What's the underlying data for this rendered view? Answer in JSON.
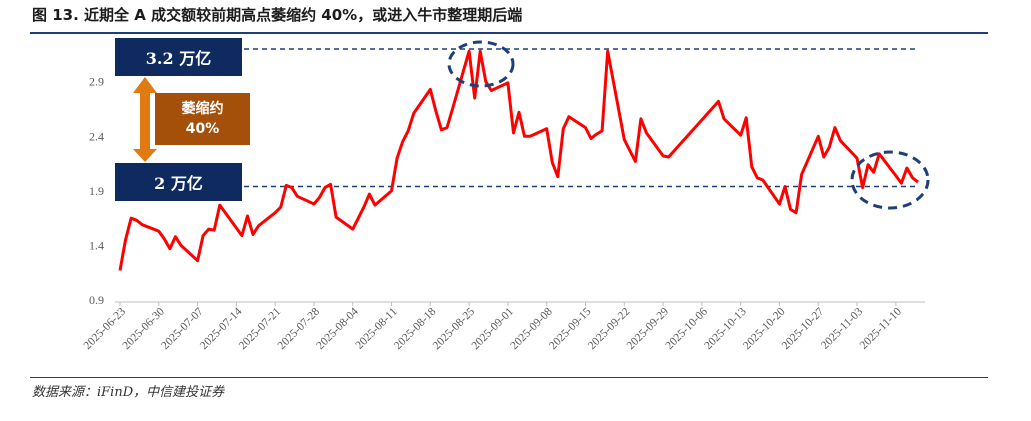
{
  "title": "图 13. 近期全 A 成交额较前期高点萎缩约 40%，或进入牛市整理期后端",
  "source": "数据来源：iFinD，中信建投证券",
  "annotations": {
    "high_label": "3.2 万亿",
    "low_label": "2 万亿",
    "shrink_line1": "萎缩约",
    "shrink_line2": "40%"
  },
  "colors": {
    "line": "#ff0000",
    "accent": "#0f2a5f",
    "shrink_box": "#a44f0a",
    "arrow": "#e07b12"
  },
  "chart_data": {
    "type": "line",
    "title": "",
    "xlabel": "",
    "ylabel": "",
    "ylim": [
      0.9,
      3.2
    ],
    "yticks": [
      0.9,
      1.4,
      1.9,
      2.4,
      2.9
    ],
    "grid": false,
    "reference_lines": [
      3.2,
      1.94
    ],
    "x_tick_labels": [
      "2025-06-23",
      "2025-06-30",
      "2025-07-07",
      "2025-07-14",
      "2025-07-21",
      "2025-07-28",
      "2025-08-04",
      "2025-08-11",
      "2025-08-18",
      "2025-08-25",
      "2025-09-01",
      "2025-09-08",
      "2025-09-15",
      "2025-09-22",
      "2025-09-29",
      "2025-10-06",
      "2025-10-13",
      "2025-10-20",
      "2025-10-27",
      "2025-11-03",
      "2025-11-10"
    ],
    "series": [
      {
        "x": [
          "2025-06-23",
          "2025-06-24",
          "2025-06-25",
          "2025-06-26",
          "2025-06-27",
          "2025-06-30",
          "2025-07-01",
          "2025-07-02",
          "2025-07-03",
          "2025-07-04",
          "2025-07-07",
          "2025-07-08",
          "2025-07-09",
          "2025-07-10",
          "2025-07-11",
          "2025-07-14",
          "2025-07-15",
          "2025-07-16",
          "2025-07-17",
          "2025-07-18",
          "2025-07-21",
          "2025-07-22",
          "2025-07-23",
          "2025-07-24",
          "2025-07-25",
          "2025-07-28",
          "2025-07-29",
          "2025-07-30",
          "2025-07-31",
          "2025-08-01",
          "2025-08-04",
          "2025-08-05",
          "2025-08-06",
          "2025-08-07",
          "2025-08-08",
          "2025-08-11",
          "2025-08-12",
          "2025-08-13",
          "2025-08-14",
          "2025-08-15",
          "2025-08-18",
          "2025-08-19",
          "2025-08-20",
          "2025-08-21",
          "2025-08-22",
          "2025-08-25",
          "2025-08-26",
          "2025-08-27",
          "2025-08-28",
          "2025-08-29",
          "2025-09-01",
          "2025-09-02",
          "2025-09-03",
          "2025-09-04",
          "2025-09-05",
          "2025-09-08",
          "2025-09-09",
          "2025-09-10",
          "2025-09-11",
          "2025-09-12",
          "2025-09-15",
          "2025-09-16",
          "2025-09-17",
          "2025-09-18",
          "2025-09-19",
          "2025-09-22",
          "2025-09-23",
          "2025-09-24",
          "2025-09-25",
          "2025-09-26",
          "2025-09-29",
          "2025-09-30",
          "2025-10-09",
          "2025-10-10",
          "2025-10-13",
          "2025-10-14",
          "2025-10-15",
          "2025-10-16",
          "2025-10-17",
          "2025-10-20",
          "2025-10-21",
          "2025-10-22",
          "2025-10-23",
          "2025-10-24",
          "2025-10-27",
          "2025-10-28",
          "2025-10-29",
          "2025-10-30",
          "2025-10-31",
          "2025-11-03",
          "2025-11-04",
          "2025-11-05",
          "2025-11-06",
          "2025-11-07",
          "2025-11-10",
          "2025-11-11",
          "2025-11-12",
          "2025-11-13",
          "2025-11-14"
        ],
        "values": [
          1.17,
          1.45,
          1.65,
          1.63,
          1.59,
          1.53,
          1.46,
          1.37,
          1.48,
          1.4,
          1.26,
          1.49,
          1.55,
          1.54,
          1.77,
          1.56,
          1.49,
          1.67,
          1.5,
          1.58,
          1.7,
          1.75,
          1.95,
          1.93,
          1.85,
          1.78,
          1.84,
          1.93,
          1.96,
          1.66,
          1.55,
          1.65,
          1.75,
          1.87,
          1.77,
          1.9,
          2.2,
          2.35,
          2.45,
          2.61,
          2.83,
          2.63,
          2.46,
          2.48,
          2.65,
          3.18,
          2.75,
          3.18,
          2.9,
          2.82,
          2.89,
          2.43,
          2.62,
          2.4,
          2.4,
          2.47,
          2.16,
          2.03,
          2.47,
          2.58,
          2.48,
          2.38,
          2.42,
          2.45,
          3.18,
          2.37,
          2.27,
          2.17,
          2.56,
          2.43,
          2.22,
          2.21,
          2.72,
          2.56,
          2.41,
          2.57,
          2.12,
          2.02,
          2.0,
          1.78,
          1.94,
          1.73,
          1.7,
          2.05,
          2.4,
          2.21,
          2.3,
          2.48,
          2.36,
          2.2,
          1.93,
          2.14,
          2.07,
          2.24,
          2.04,
          1.97,
          2.11,
          2.02,
          1.98
        ]
      }
    ]
  }
}
